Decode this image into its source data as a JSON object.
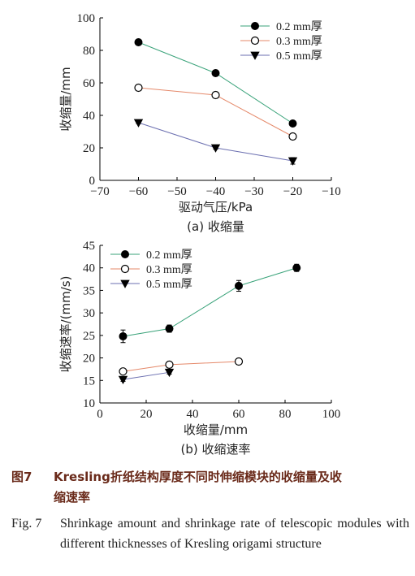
{
  "chart_data": [
    {
      "type": "line",
      "xlabel": "驱动气压/kPa",
      "ylabel": "收缩量/mm",
      "caption": "(a)  收缩量",
      "xlim": [
        -70,
        -10
      ],
      "ylim": [
        0,
        100
      ],
      "xticks": [
        "−70",
        "−60",
        "−50",
        "−40",
        "−30",
        "−20",
        "−10"
      ],
      "yticks": [
        "0",
        "20",
        "40",
        "60",
        "80",
        "100"
      ],
      "legend_position": "top-right",
      "series": [
        {
          "name": "0.2 mm厚",
          "marker": "filled-circle",
          "color": "#3aa37a",
          "x": [
            -60,
            -40,
            -20
          ],
          "y": [
            85,
            66,
            35
          ],
          "err": [
            1.5,
            1.5,
            1.5
          ]
        },
        {
          "name": "0.3 mm厚",
          "marker": "open-circle",
          "color": "#e5896a",
          "x": [
            -60,
            -40,
            -20
          ],
          "y": [
            57,
            52.5,
            27
          ],
          "err": [
            1.2,
            1.5,
            1.3
          ]
        },
        {
          "name": "0.5 mm厚",
          "marker": "filled-triangle-down",
          "color": "#6b6fb0",
          "x": [
            -60,
            -40,
            -20
          ],
          "y": [
            35.5,
            20,
            12
          ],
          "err": [
            0.6,
            0.8,
            2
          ]
        }
      ]
    },
    {
      "type": "line",
      "xlabel": "收缩量/mm",
      "ylabel": "收缩速率/(mm/s)",
      "caption": "(b)  收缩速率",
      "xlim": [
        0,
        100
      ],
      "ylim": [
        10,
        45
      ],
      "xticks": [
        "0",
        "20",
        "40",
        "60",
        "80",
        "100"
      ],
      "yticks": [
        "10",
        "15",
        "20",
        "25",
        "30",
        "35",
        "40",
        "45"
      ],
      "legend_position": "top-left",
      "series": [
        {
          "name": "0.2 mm厚",
          "marker": "filled-circle",
          "color": "#3aa37a",
          "x": [
            10,
            30,
            60,
            85
          ],
          "y": [
            24.8,
            26.5,
            36,
            40
          ],
          "err": [
            1.4,
            0.8,
            1.2,
            0.8
          ]
        },
        {
          "name": "0.3 mm厚",
          "marker": "open-circle",
          "color": "#e5896a",
          "x": [
            10,
            30,
            60
          ],
          "y": [
            17,
            18.5,
            19.2
          ],
          "err": [
            0.5,
            0.6,
            0.5
          ]
        },
        {
          "name": "0.5 mm厚",
          "marker": "filled-triangle-down",
          "color": "#6b6fb0",
          "x": [
            10,
            30
          ],
          "y": [
            15.2,
            16.8
          ],
          "err": [
            0.4,
            0.4
          ]
        }
      ]
    }
  ],
  "caption": {
    "cn_label": "图7",
    "cn_text_1": "Kresling折纸结构厚度不同时伸缩模块的收缩量及收",
    "cn_text_2": "缩速率",
    "en_label": "Fig. 7",
    "en_text": "Shrinkage amount and shrinkage rate of telescopic modules with different thicknesses of Kresling origami structure"
  }
}
